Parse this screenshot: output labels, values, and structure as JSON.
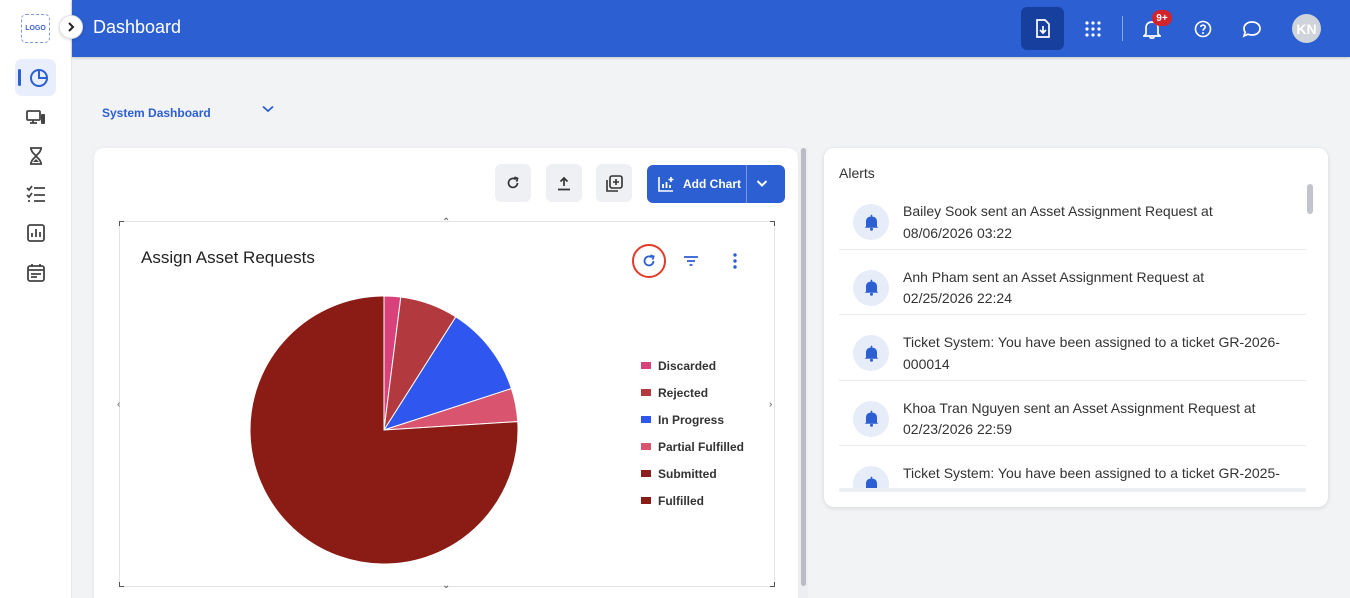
{
  "app": {
    "logo_text": "LOGO",
    "title": "Dashboard"
  },
  "header": {
    "notification_badge": "9+",
    "avatar_initials": "KN"
  },
  "dashboard_selector": {
    "value": "System Dashboard"
  },
  "toolbar": {
    "add_chart_label": "Add Chart"
  },
  "chart_card": {
    "title": "Assign Asset Requests"
  },
  "chart_data": {
    "type": "pie",
    "title": "Assign Asset Requests",
    "legend_position": "right",
    "categories": [
      "Discarded",
      "Rejected",
      "In Progress",
      "Partial Fulfilled",
      "Submitted",
      "Fulfilled"
    ],
    "values": [
      2,
      7,
      11,
      4,
      0,
      76
    ],
    "colors": [
      "#d9417b",
      "#b23a3f",
      "#2f57ef",
      "#d9546e",
      "#8a1e1e",
      "#8a1b15"
    ]
  },
  "legend": [
    "Discarded",
    "Rejected",
    "In Progress",
    "Partial Fulfilled",
    "Submitted",
    "Fulfilled"
  ],
  "alerts": {
    "title": "Alerts",
    "items": [
      {
        "line1": "Bailey Sook sent an Asset Assignment Request at",
        "line2": "08/06/2026 03:22"
      },
      {
        "line1": "Anh Pham sent an Asset Assignment Request at",
        "line2": "02/25/2026 22:24"
      },
      {
        "line1": "Ticket System: You have been assigned to a ticket GR-2026-",
        "line2": "000014"
      },
      {
        "line1": "Khoa Tran Nguyen sent an Asset Assignment Request at",
        "line2": "02/23/2026 22:59"
      },
      {
        "line1": "Ticket System: You have been assigned to a ticket GR-2025-",
        "line2": ""
      }
    ]
  }
}
